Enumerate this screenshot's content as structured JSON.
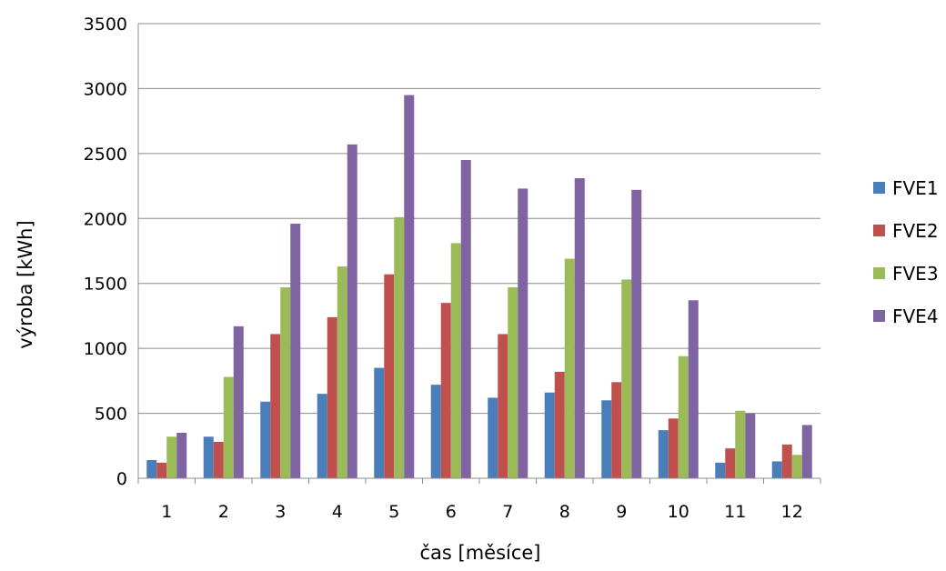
{
  "chart_data": {
    "type": "bar",
    "title": "",
    "xlabel": "čas [měsíce]",
    "ylabel": "výroba  [kWh]",
    "ylim": [
      0,
      3500
    ],
    "ytick_step": 500,
    "grid": true,
    "legend_position": "right",
    "categories": [
      "1",
      "2",
      "3",
      "4",
      "5",
      "6",
      "7",
      "8",
      "9",
      "10",
      "11",
      "12"
    ],
    "series": [
      {
        "name": "FVE1",
        "color": "#4a7ebb",
        "values": [
          140,
          320,
          590,
          650,
          850,
          720,
          620,
          660,
          600,
          370,
          120,
          130
        ]
      },
      {
        "name": "FVE2",
        "color": "#c0504d",
        "values": [
          120,
          280,
          1110,
          1240,
          1570,
          1350,
          1110,
          820,
          740,
          460,
          230,
          260
        ]
      },
      {
        "name": "FVE3",
        "color": "#9bbb59",
        "values": [
          320,
          780,
          1470,
          1630,
          2010,
          1810,
          1470,
          1690,
          1530,
          940,
          520,
          180
        ]
      },
      {
        "name": "FVE4",
        "color": "#8064a2",
        "values": [
          350,
          1170,
          1960,
          2570,
          2950,
          2450,
          2230,
          2310,
          2220,
          1370,
          500,
          410
        ]
      }
    ]
  }
}
